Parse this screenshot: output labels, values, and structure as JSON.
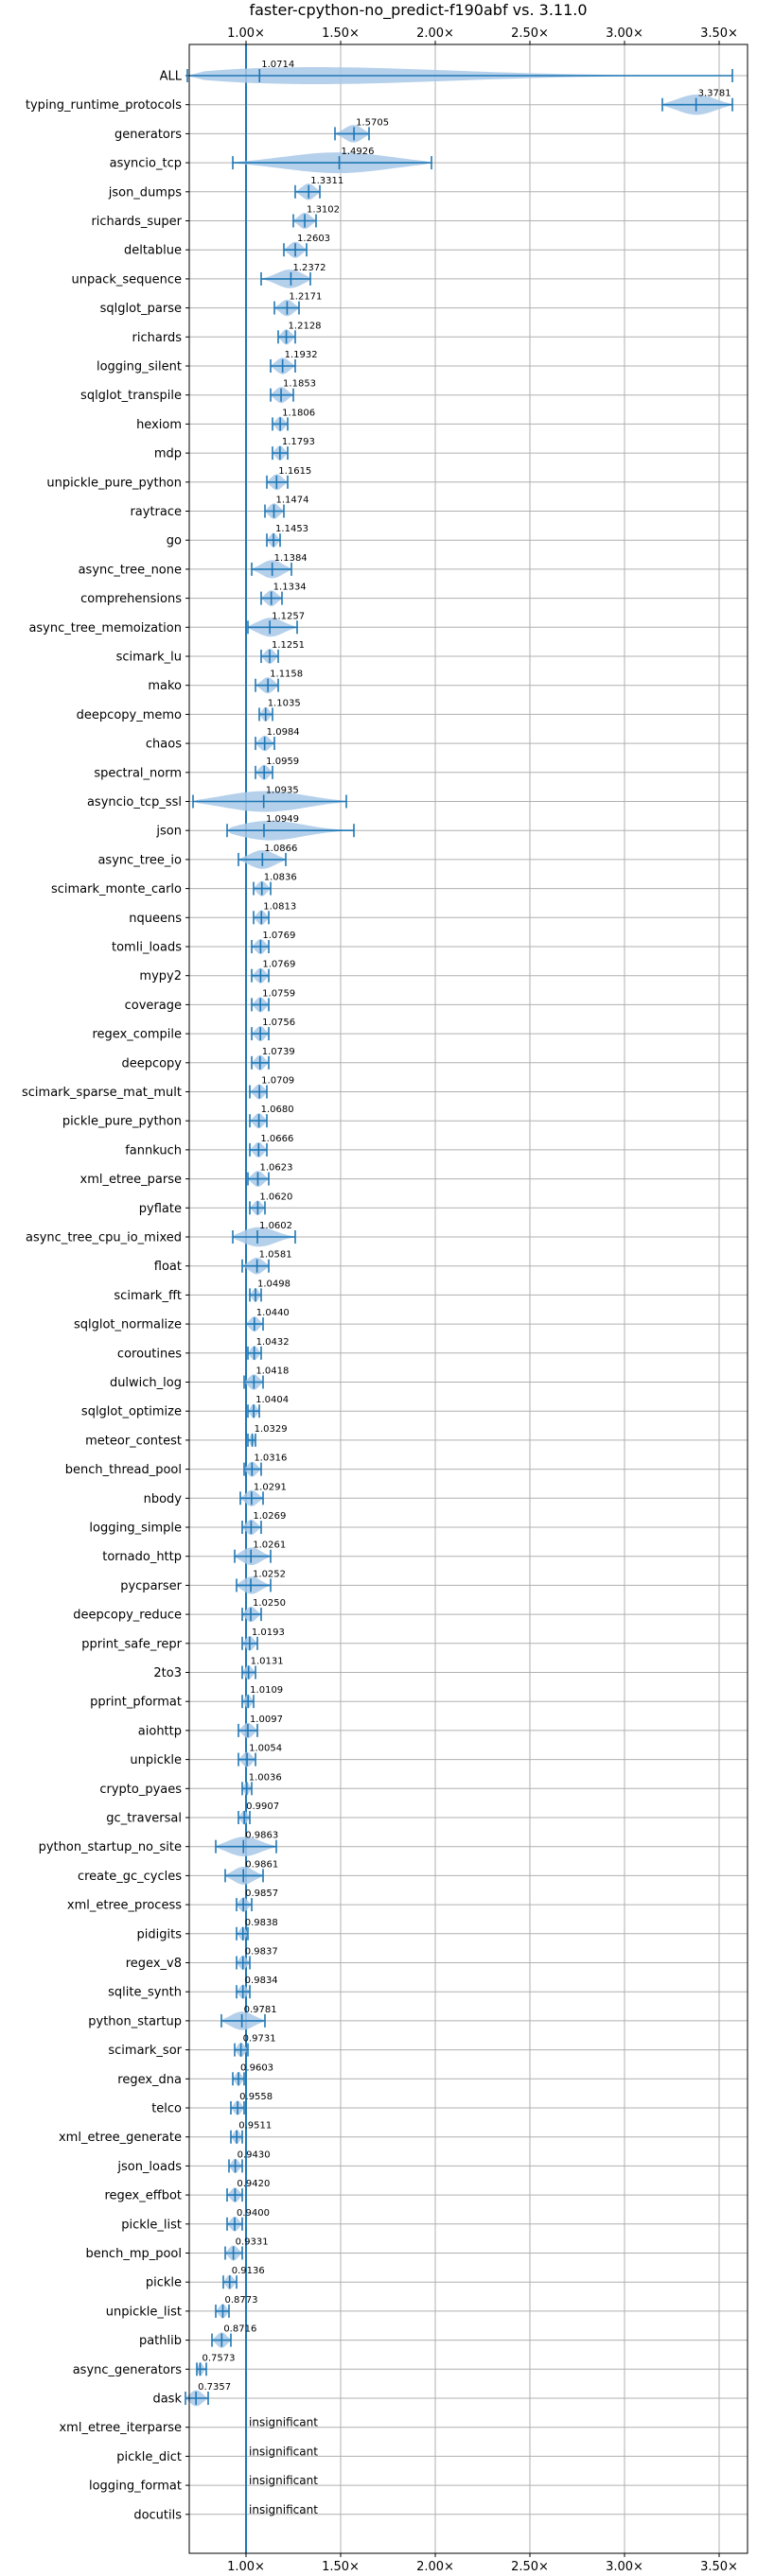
{
  "chart_data": {
    "type": "violin",
    "title": "faster-cpython-no_predict-f190abf vs. 3.11.0",
    "x_tick_labels": [
      "1.00×",
      "1.50×",
      "2.00×",
      "2.50×",
      "3.00×",
      "3.50×"
    ],
    "x_ticks": [
      1.0,
      1.5,
      2.0,
      2.5,
      3.0,
      3.5
    ],
    "xlim": [
      0.7,
      3.65
    ],
    "reference_line": 1.0,
    "grid": true,
    "colors": {
      "violin": "#a8c8e8",
      "line": "#1f77b4",
      "grid": "#b0b0b0"
    },
    "insignificant_label": "insignificant",
    "benchmarks": [
      {
        "name": "ALL",
        "value": 1.0714,
        "label": "1.0714",
        "lo": 0.69,
        "hi": 3.57
      },
      {
        "name": "typing_runtime_protocols",
        "value": 3.3781,
        "label": "3.3781",
        "lo": 3.2,
        "hi": 3.57
      },
      {
        "name": "generators",
        "value": 1.5705,
        "label": "1.5705",
        "lo": 1.47,
        "hi": 1.65
      },
      {
        "name": "asyncio_tcp",
        "value": 1.4926,
        "label": "1.4926",
        "lo": 0.93,
        "hi": 1.98
      },
      {
        "name": "json_dumps",
        "value": 1.3311,
        "label": "1.3311",
        "lo": 1.26,
        "hi": 1.39
      },
      {
        "name": "richards_super",
        "value": 1.3102,
        "label": "1.3102",
        "lo": 1.25,
        "hi": 1.37
      },
      {
        "name": "deltablue",
        "value": 1.2603,
        "label": "1.2603",
        "lo": 1.2,
        "hi": 1.32
      },
      {
        "name": "unpack_sequence",
        "value": 1.2372,
        "label": "1.2372",
        "lo": 1.08,
        "hi": 1.34
      },
      {
        "name": "sqlglot_parse",
        "value": 1.2171,
        "label": "1.2171",
        "lo": 1.15,
        "hi": 1.28
      },
      {
        "name": "richards",
        "value": 1.2128,
        "label": "1.2128",
        "lo": 1.17,
        "hi": 1.26
      },
      {
        "name": "logging_silent",
        "value": 1.1932,
        "label": "1.1932",
        "lo": 1.13,
        "hi": 1.26
      },
      {
        "name": "sqlglot_transpile",
        "value": 1.1853,
        "label": "1.1853",
        "lo": 1.13,
        "hi": 1.25
      },
      {
        "name": "hexiom",
        "value": 1.1806,
        "label": "1.1806",
        "lo": 1.14,
        "hi": 1.22
      },
      {
        "name": "mdp",
        "value": 1.1793,
        "label": "1.1793",
        "lo": 1.14,
        "hi": 1.22
      },
      {
        "name": "unpickle_pure_python",
        "value": 1.1615,
        "label": "1.1615",
        "lo": 1.11,
        "hi": 1.22
      },
      {
        "name": "raytrace",
        "value": 1.1474,
        "label": "1.1474",
        "lo": 1.1,
        "hi": 1.2
      },
      {
        "name": "go",
        "value": 1.1453,
        "label": "1.1453",
        "lo": 1.11,
        "hi": 1.18
      },
      {
        "name": "async_tree_none",
        "value": 1.1384,
        "label": "1.1384",
        "lo": 1.03,
        "hi": 1.24
      },
      {
        "name": "comprehensions",
        "value": 1.1334,
        "label": "1.1334",
        "lo": 1.08,
        "hi": 1.19
      },
      {
        "name": "async_tree_memoization",
        "value": 1.1257,
        "label": "1.1257",
        "lo": 1.01,
        "hi": 1.27
      },
      {
        "name": "scimark_lu",
        "value": 1.1251,
        "label": "1.1251",
        "lo": 1.08,
        "hi": 1.17
      },
      {
        "name": "mako",
        "value": 1.1158,
        "label": "1.1158",
        "lo": 1.05,
        "hi": 1.17
      },
      {
        "name": "deepcopy_memo",
        "value": 1.1035,
        "label": "1.1035",
        "lo": 1.07,
        "hi": 1.14
      },
      {
        "name": "chaos",
        "value": 1.0984,
        "label": "1.0984",
        "lo": 1.05,
        "hi": 1.15
      },
      {
        "name": "spectral_norm",
        "value": 1.0959,
        "label": "1.0959",
        "lo": 1.05,
        "hi": 1.14
      },
      {
        "name": "asyncio_tcp_ssl",
        "value": 1.0935,
        "label": "1.0935",
        "lo": 0.72,
        "hi": 1.53
      },
      {
        "name": "json",
        "value": 1.0949,
        "label": "1.0949",
        "lo": 0.9,
        "hi": 1.57
      },
      {
        "name": "async_tree_io",
        "value": 1.0866,
        "label": "1.0866",
        "lo": 0.96,
        "hi": 1.21
      },
      {
        "name": "scimark_monte_carlo",
        "value": 1.0836,
        "label": "1.0836",
        "lo": 1.04,
        "hi": 1.13
      },
      {
        "name": "nqueens",
        "value": 1.0813,
        "label": "1.0813",
        "lo": 1.04,
        "hi": 1.12
      },
      {
        "name": "tomli_loads",
        "value": 1.0769,
        "label": "1.0769",
        "lo": 1.03,
        "hi": 1.12
      },
      {
        "name": "mypy2",
        "value": 1.0769,
        "label": "1.0769",
        "lo": 1.03,
        "hi": 1.12
      },
      {
        "name": "coverage",
        "value": 1.0759,
        "label": "1.0759",
        "lo": 1.03,
        "hi": 1.12
      },
      {
        "name": "regex_compile",
        "value": 1.0756,
        "label": "1.0756",
        "lo": 1.03,
        "hi": 1.12
      },
      {
        "name": "deepcopy",
        "value": 1.0739,
        "label": "1.0739",
        "lo": 1.03,
        "hi": 1.12
      },
      {
        "name": "scimark_sparse_mat_mult",
        "value": 1.0709,
        "label": "1.0709",
        "lo": 1.02,
        "hi": 1.11
      },
      {
        "name": "pickle_pure_python",
        "value": 1.068,
        "label": "1.0680",
        "lo": 1.02,
        "hi": 1.11
      },
      {
        "name": "fannkuch",
        "value": 1.0666,
        "label": "1.0666",
        "lo": 1.02,
        "hi": 1.11
      },
      {
        "name": "xml_etree_parse",
        "value": 1.0623,
        "label": "1.0623",
        "lo": 1.01,
        "hi": 1.12
      },
      {
        "name": "pyflate",
        "value": 1.062,
        "label": "1.0620",
        "lo": 1.02,
        "hi": 1.1
      },
      {
        "name": "async_tree_cpu_io_mixed",
        "value": 1.0602,
        "label": "1.0602",
        "lo": 0.93,
        "hi": 1.26
      },
      {
        "name": "float",
        "value": 1.0581,
        "label": "1.0581",
        "lo": 0.98,
        "hi": 1.12
      },
      {
        "name": "scimark_fft",
        "value": 1.0498,
        "label": "1.0498",
        "lo": 1.02,
        "hi": 1.08
      },
      {
        "name": "sqlglot_normalize",
        "value": 1.044,
        "label": "1.0440",
        "lo": 1.0,
        "hi": 1.09
      },
      {
        "name": "coroutines",
        "value": 1.0432,
        "label": "1.0432",
        "lo": 1.01,
        "hi": 1.08
      },
      {
        "name": "dulwich_log",
        "value": 1.0418,
        "label": "1.0418",
        "lo": 0.99,
        "hi": 1.09
      },
      {
        "name": "sqlglot_optimize",
        "value": 1.0404,
        "label": "1.0404",
        "lo": 1.01,
        "hi": 1.07
      },
      {
        "name": "meteor_contest",
        "value": 1.0329,
        "label": "1.0329",
        "lo": 1.01,
        "hi": 1.05
      },
      {
        "name": "bench_thread_pool",
        "value": 1.0316,
        "label": "1.0316",
        "lo": 0.99,
        "hi": 1.08
      },
      {
        "name": "nbody",
        "value": 1.0291,
        "label": "1.0291",
        "lo": 0.97,
        "hi": 1.09
      },
      {
        "name": "logging_simple",
        "value": 1.0269,
        "label": "1.0269",
        "lo": 0.98,
        "hi": 1.08
      },
      {
        "name": "tornado_http",
        "value": 1.0261,
        "label": "1.0261",
        "lo": 0.94,
        "hi": 1.13
      },
      {
        "name": "pycparser",
        "value": 1.0252,
        "label": "1.0252",
        "lo": 0.95,
        "hi": 1.13
      },
      {
        "name": "deepcopy_reduce",
        "value": 1.025,
        "label": "1.0250",
        "lo": 0.98,
        "hi": 1.08
      },
      {
        "name": "pprint_safe_repr",
        "value": 1.0193,
        "label": "1.0193",
        "lo": 0.98,
        "hi": 1.06
      },
      {
        "name": "2to3",
        "value": 1.0131,
        "label": "1.0131",
        "lo": 0.98,
        "hi": 1.05
      },
      {
        "name": "pprint_pformat",
        "value": 1.0109,
        "label": "1.0109",
        "lo": 0.98,
        "hi": 1.04
      },
      {
        "name": "aiohttp",
        "value": 1.0097,
        "label": "1.0097",
        "lo": 0.96,
        "hi": 1.06
      },
      {
        "name": "unpickle",
        "value": 1.0054,
        "label": "1.0054",
        "lo": 0.96,
        "hi": 1.05
      },
      {
        "name": "crypto_pyaes",
        "value": 1.0036,
        "label": "1.0036",
        "lo": 0.98,
        "hi": 1.03
      },
      {
        "name": "gc_traversal",
        "value": 0.9907,
        "label": "0.9907",
        "lo": 0.96,
        "hi": 1.02
      },
      {
        "name": "python_startup_no_site",
        "value": 0.9863,
        "label": "0.9863",
        "lo": 0.84,
        "hi": 1.16
      },
      {
        "name": "create_gc_cycles",
        "value": 0.9861,
        "label": "0.9861",
        "lo": 0.89,
        "hi": 1.09
      },
      {
        "name": "xml_etree_process",
        "value": 0.9857,
        "label": "0.9857",
        "lo": 0.95,
        "hi": 1.03
      },
      {
        "name": "pidigits",
        "value": 0.9838,
        "label": "0.9838",
        "lo": 0.95,
        "hi": 1.01
      },
      {
        "name": "regex_v8",
        "value": 0.9837,
        "label": "0.9837",
        "lo": 0.95,
        "hi": 1.02
      },
      {
        "name": "sqlite_synth",
        "value": 0.9834,
        "label": "0.9834",
        "lo": 0.95,
        "hi": 1.02
      },
      {
        "name": "python_startup",
        "value": 0.9781,
        "label": "0.9781",
        "lo": 0.87,
        "hi": 1.1
      },
      {
        "name": "scimark_sor",
        "value": 0.9731,
        "label": "0.9731",
        "lo": 0.94,
        "hi": 1.01
      },
      {
        "name": "regex_dna",
        "value": 0.9603,
        "label": "0.9603",
        "lo": 0.93,
        "hi": 0.99
      },
      {
        "name": "telco",
        "value": 0.9558,
        "label": "0.9558",
        "lo": 0.92,
        "hi": 0.99
      },
      {
        "name": "xml_etree_generate",
        "value": 0.9511,
        "label": "0.9511",
        "lo": 0.92,
        "hi": 0.98
      },
      {
        "name": "json_loads",
        "value": 0.943,
        "label": "0.9430",
        "lo": 0.91,
        "hi": 0.98
      },
      {
        "name": "regex_effbot",
        "value": 0.942,
        "label": "0.9420",
        "lo": 0.9,
        "hi": 0.98
      },
      {
        "name": "pickle_list",
        "value": 0.94,
        "label": "0.9400",
        "lo": 0.9,
        "hi": 0.98
      },
      {
        "name": "bench_mp_pool",
        "value": 0.9331,
        "label": "0.9331",
        "lo": 0.89,
        "hi": 0.98
      },
      {
        "name": "pickle",
        "value": 0.9136,
        "label": "0.9136",
        "lo": 0.88,
        "hi": 0.95
      },
      {
        "name": "unpickle_list",
        "value": 0.8773,
        "label": "0.8773",
        "lo": 0.84,
        "hi": 0.91
      },
      {
        "name": "pathlib",
        "value": 0.8716,
        "label": "0.8716",
        "lo": 0.82,
        "hi": 0.92
      },
      {
        "name": "async_generators",
        "value": 0.7573,
        "label": "0.7573",
        "lo": 0.74,
        "hi": 0.79
      },
      {
        "name": "dask",
        "value": 0.7357,
        "label": "0.7357",
        "lo": 0.68,
        "hi": 0.8
      },
      {
        "name": "xml_etree_iterparse",
        "insignificant": true
      },
      {
        "name": "pickle_dict",
        "insignificant": true
      },
      {
        "name": "logging_format",
        "insignificant": true
      },
      {
        "name": "docutils",
        "insignificant": true
      }
    ]
  }
}
